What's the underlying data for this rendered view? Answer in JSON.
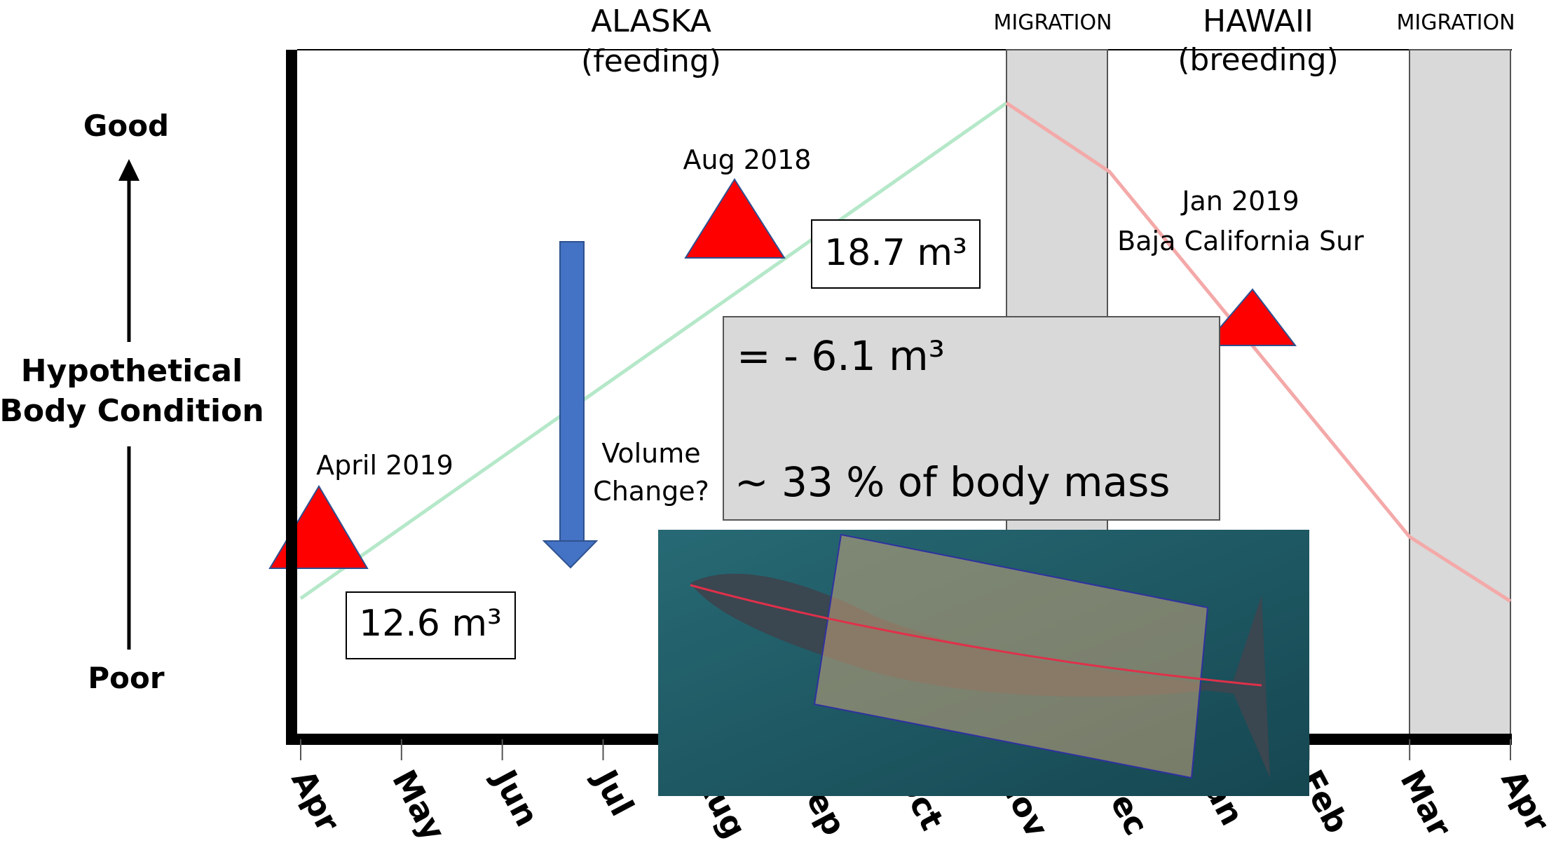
{
  "seasons": [
    {
      "label": "ALASKA",
      "sub": "(feeding)"
    },
    {
      "label": "MIGRATION"
    },
    {
      "label": "HAWAII",
      "sub": "(breeding)"
    },
    {
      "label": "MIGRATION"
    }
  ],
  "y_axis": {
    "top": "Good",
    "label": [
      "Hypothetical",
      "Body Condition"
    ],
    "bottom": "Poor"
  },
  "months": [
    "Apr",
    "May",
    "Jun",
    "Jul",
    "Aug",
    "Sep",
    "Oct",
    "Nov",
    "Dec",
    "Jan",
    "Feb",
    "Mar",
    "Apr"
  ],
  "observations": [
    {
      "label": "April 2019",
      "volume": "12.6 m³"
    },
    {
      "label": "Aug 2018",
      "volume": "18.7 m³"
    },
    {
      "label": [
        "Jan 2019",
        "Baja California Sur"
      ]
    }
  ],
  "arrow_label": [
    "Volume",
    "Change?"
  ],
  "result": [
    "= - 6.1 m³",
    "~ 33 % of body mass"
  ]
}
